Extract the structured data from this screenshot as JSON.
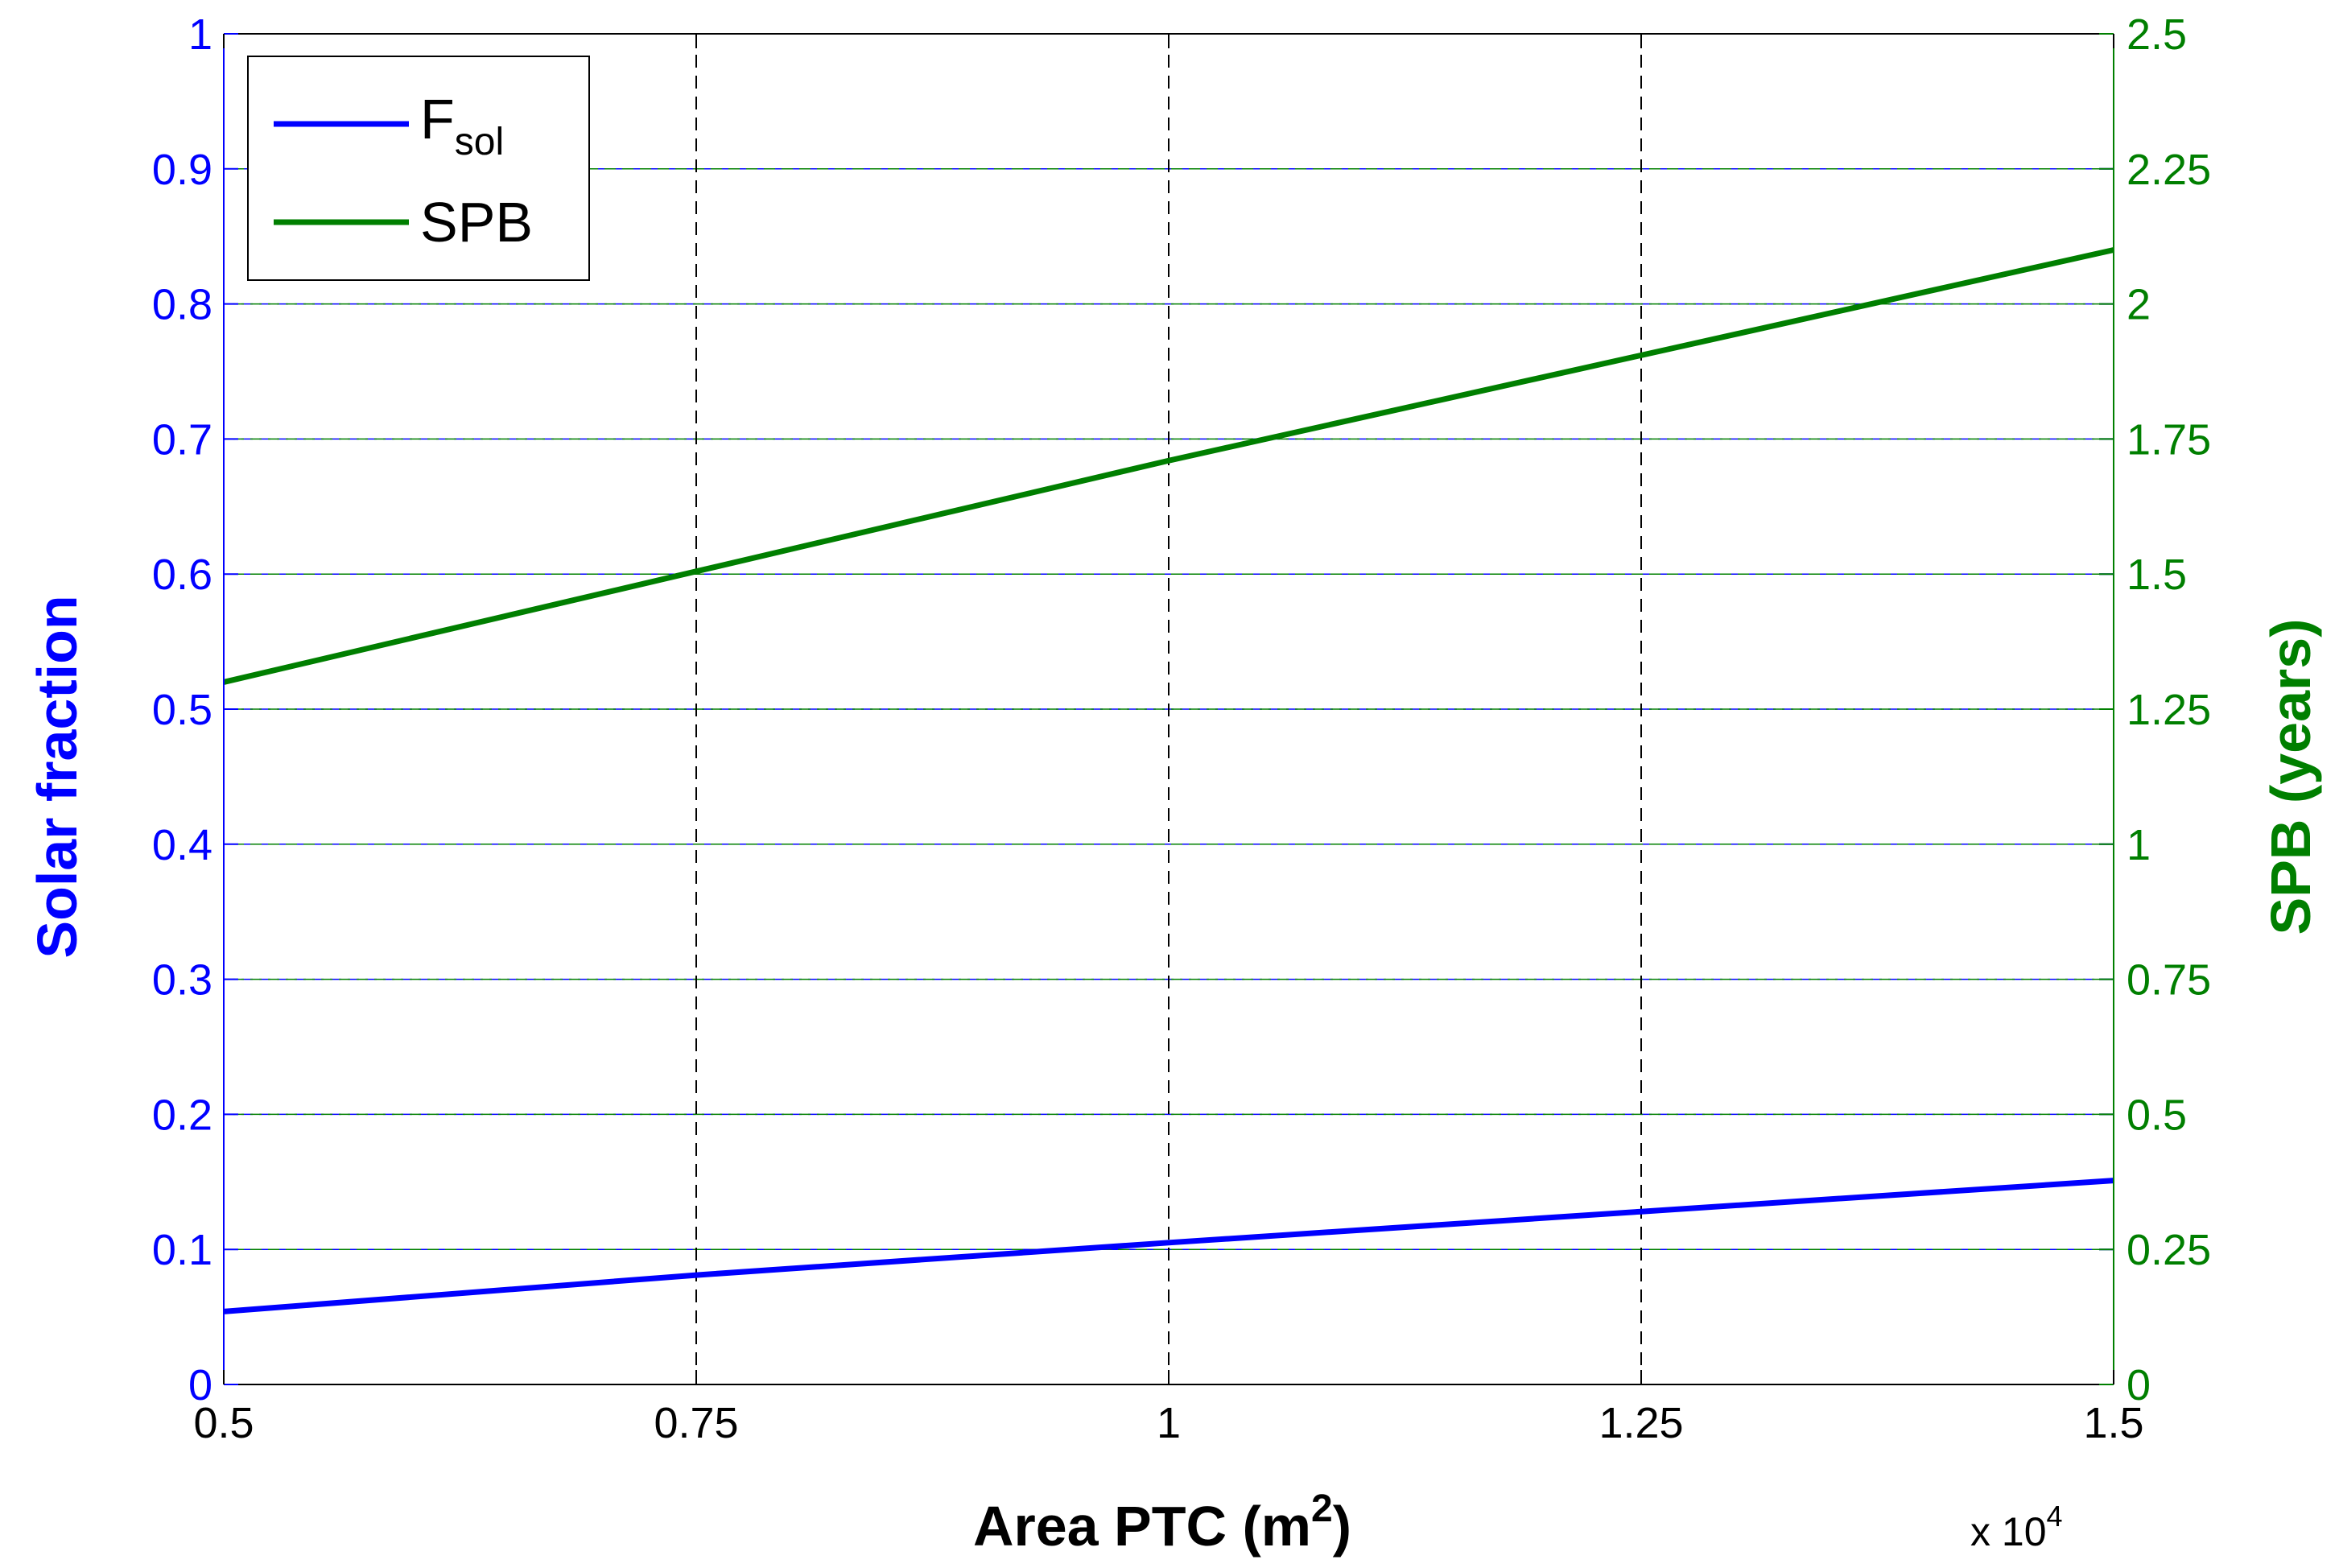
{
  "chart_data": {
    "type": "line",
    "xlabel": "Area PTC (m",
    "xlabel_sup": "2",
    "xlabel_end": ")",
    "x_multiplier_prefix": "x 10",
    "x_multiplier_exp": "4",
    "ylabel_left": "Solar fraction",
    "ylabel_right": "SPB (years)",
    "xlim": [
      0.5,
      1.5
    ],
    "ylim_left": [
      0,
      1
    ],
    "ylim_right": [
      0,
      2.5
    ],
    "x_ticks": [
      "0.5",
      "0.75",
      "1",
      "1.25",
      "1.5"
    ],
    "y_left_ticks": [
      "0",
      "0.1",
      "0.2",
      "0.3",
      "0.4",
      "0.5",
      "0.6",
      "0.7",
      "0.8",
      "0.9",
      "1"
    ],
    "y_right_ticks": [
      "0",
      "0.25",
      "0.5",
      "0.75",
      "1",
      "1.25",
      "1.5",
      "1.75",
      "2",
      "2.25",
      "2.5"
    ],
    "grid": true,
    "legend_position": "top-left",
    "series": [
      {
        "name": "F",
        "name_sub": "sol",
        "axis": "left",
        "color": "#0000ff",
        "x": [
          0.5,
          0.75,
          1.0,
          1.25,
          1.5
        ],
        "y": [
          0.054,
          0.081,
          0.105,
          0.128,
          0.151
        ]
      },
      {
        "name": "SPB",
        "axis": "right",
        "color": "#007f00",
        "x": [
          0.5,
          0.75,
          1.0,
          1.25,
          1.5
        ],
        "y": [
          1.3,
          1.505,
          1.71,
          1.905,
          2.1
        ]
      }
    ]
  }
}
